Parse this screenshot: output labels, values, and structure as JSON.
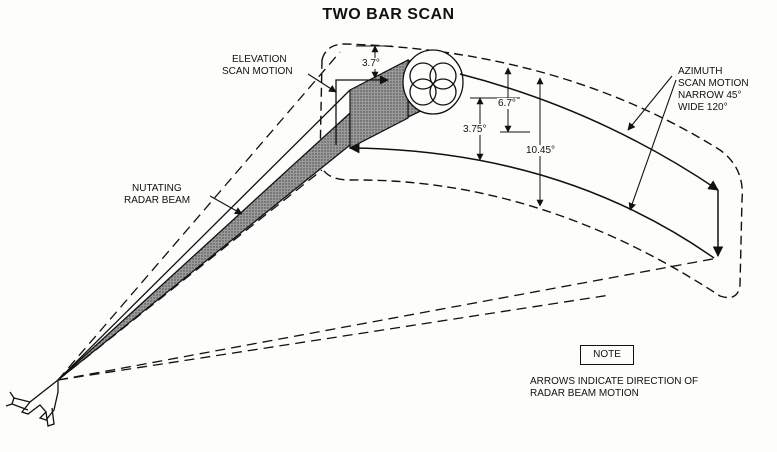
{
  "title": "TWO BAR SCAN",
  "labels": {
    "elevation_line1": "ELEVATION",
    "elevation_line2": "SCAN MOTION",
    "nutating_line1": "NUTATING",
    "nutating_line2": "RADAR BEAM",
    "azimuth_line1": "AZIMUTH",
    "azimuth_line2": "SCAN MOTION",
    "azimuth_line3": "NARROW 45°",
    "azimuth_line4": "WIDE 120°"
  },
  "dimensions": {
    "beam_step": "3.7°",
    "bar_height": "6.7°",
    "bar_spacing": "3.75°",
    "total_coverage": "10.45°"
  },
  "note": {
    "heading": "NOTE",
    "line1": "ARROWS INDICATE DIRECTION OF",
    "line2": "RADAR BEAM MOTION"
  }
}
